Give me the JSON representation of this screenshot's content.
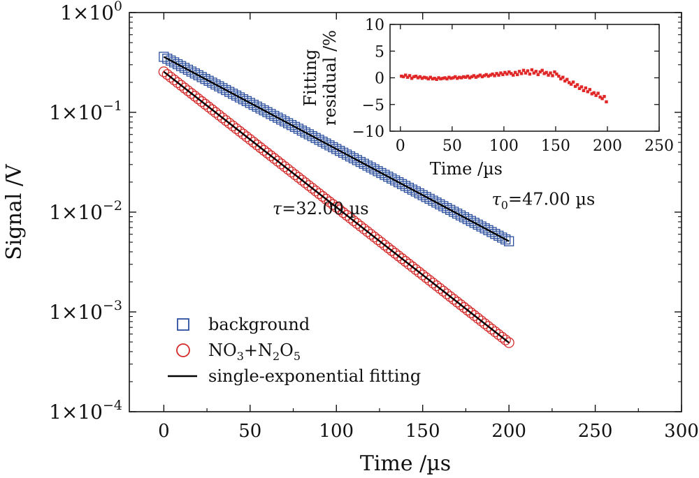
{
  "chart_data": [
    {
      "type": "scatter",
      "role": "main",
      "xlabel": "Time /µs",
      "ylabel": "Signal /V",
      "y_scale": "log",
      "xlim": [
        -20,
        300
      ],
      "ylim": [
        0.0001,
        1
      ],
      "x_ticks": [
        0,
        50,
        100,
        150,
        200,
        250,
        300
      ],
      "x_tick_labels": [
        "0",
        "50",
        "100",
        "150",
        "200",
        "250",
        "300"
      ],
      "y_ticks": [
        {
          "value": 1,
          "base": "1×10",
          "exp": "0"
        },
        {
          "value": 0.1,
          "base": "1×10",
          "exp": "−1"
        },
        {
          "value": 0.01,
          "base": "1×10",
          "exp": "−2"
        },
        {
          "value": 0.001,
          "base": "1×10",
          "exp": "−3"
        },
        {
          "value": 0.0001,
          "base": "1×10",
          "exp": "−4"
        }
      ],
      "series": [
        {
          "name": "background",
          "marker": "square",
          "color": "#2b4f9e",
          "x_start": 0,
          "x_end": 200,
          "x_step": 2,
          "y_start": 0.36,
          "tau_us": 47.0
        },
        {
          "name": "NO3+N2O5",
          "marker": "circle",
          "color": "#d42a2a",
          "x_start": 0,
          "x_end": 200,
          "x_step": 2,
          "y_start": 0.255,
          "tau_us": 32.0
        },
        {
          "name": "single-exponential fitting",
          "marker": "line",
          "color": "#000000"
        }
      ],
      "legend": {
        "position": "lower-left",
        "items": [
          {
            "marker": "square",
            "color": "#2b4f9e",
            "label": "background"
          },
          {
            "marker": "circle",
            "color": "#d42a2a",
            "label_parts": [
              "NO",
              "3",
              "+N",
              "2",
              "O",
              "5"
            ]
          },
          {
            "marker": "line",
            "color": "#000000",
            "label": "single-exponential fitting"
          }
        ]
      },
      "annotations": [
        {
          "parts": [
            "τ",
            "",
            "=32.00 µs"
          ],
          "anchor_x": 63,
          "anchor_y": 0.0095
        },
        {
          "parts": [
            "τ",
            "0",
            "=47.00 µs"
          ],
          "anchor_x": 190,
          "anchor_y": 0.0118
        }
      ]
    },
    {
      "type": "scatter",
      "role": "inset",
      "xlabel": "Time /µs",
      "ylabel_lines": [
        "Fitting",
        "residual /%"
      ],
      "xlim": [
        -10,
        250
      ],
      "ylim": [
        -10,
        10
      ],
      "x_ticks": [
        0,
        50,
        100,
        150,
        200,
        250
      ],
      "x_tick_labels": [
        "0",
        "50",
        "100",
        "150",
        "200",
        "250"
      ],
      "y_ticks": [
        10,
        5,
        0,
        -5,
        -10
      ],
      "y_tick_labels": [
        "10",
        "5",
        "0",
        "−5",
        "−10"
      ],
      "series": [
        {
          "name": "residual",
          "marker": "square",
          "color": "#e02828",
          "x": [
            1,
            3,
            5,
            7,
            9,
            11,
            13,
            15,
            17,
            19,
            21,
            23,
            25,
            27,
            29,
            31,
            33,
            35,
            37,
            39,
            41,
            43,
            45,
            47,
            49,
            51,
            53,
            55,
            57,
            59,
            61,
            63,
            65,
            67,
            69,
            71,
            73,
            75,
            77,
            79,
            81,
            83,
            85,
            87,
            89,
            91,
            93,
            95,
            97,
            99,
            101,
            103,
            105,
            107,
            109,
            111,
            113,
            115,
            117,
            119,
            121,
            123,
            125,
            127,
            129,
            131,
            133,
            135,
            137,
            139,
            141,
            143,
            145,
            147,
            149,
            151,
            153,
            155,
            157,
            159,
            161,
            163,
            165,
            167,
            169,
            171,
            173,
            175,
            177,
            179,
            181,
            183,
            185,
            187,
            189,
            191,
            193,
            195,
            197,
            199
          ],
          "y": [
            0.3,
            0.2,
            0.5,
            0.1,
            0.4,
            -0.1,
            0.2,
            0.3,
            0.0,
            0.2,
            -0.1,
            0.1,
            0.0,
            -0.2,
            0.1,
            -0.2,
            -0.1,
            -0.3,
            0.0,
            -0.2,
            -0.1,
            0.0,
            -0.2,
            0.1,
            -0.1,
            0.0,
            0.2,
            -0.1,
            0.1,
            0.0,
            0.2,
            0.1,
            0.3,
            0.0,
            0.2,
            0.4,
            0.1,
            0.3,
            0.5,
            0.2,
            0.4,
            0.6,
            0.3,
            0.5,
            0.7,
            0.4,
            0.8,
            0.5,
            0.9,
            0.6,
            1.0,
            0.7,
            1.1,
            0.8,
            0.5,
            1.0,
            0.6,
            1.2,
            0.8,
            1.4,
            0.9,
            1.3,
            0.7,
            1.5,
            0.9,
            1.2,
            0.6,
            1.1,
            1.4,
            0.8,
            1.0,
            0.5,
            0.9,
            0.4,
            1.1,
            0.7,
            0.3,
            -0.2,
            0.1,
            -0.6,
            -0.3,
            -0.9,
            -1.2,
            -0.8,
            -1.6,
            -1.3,
            -2.0,
            -1.7,
            -2.4,
            -1.9,
            -2.6,
            -2.2,
            -3.0,
            -2.8,
            -3.3,
            -2.9,
            -3.6,
            -3.9,
            -3.5,
            -4.5
          ]
        }
      ]
    }
  ]
}
